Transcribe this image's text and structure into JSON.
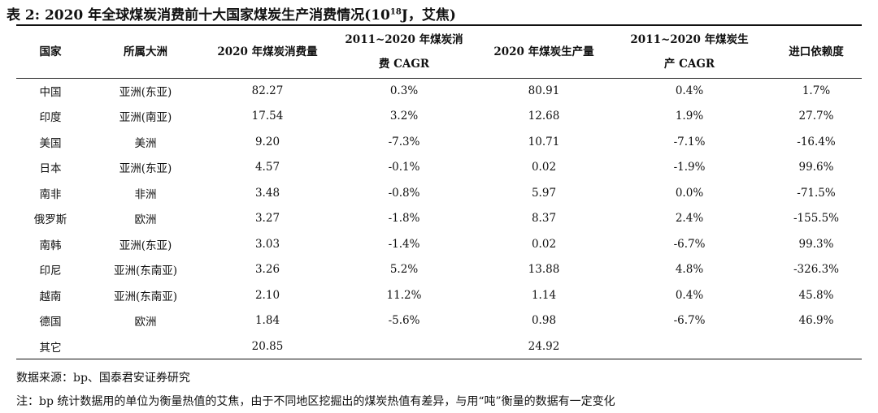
{
  "title_main": "表 2: 2020 年全球煤炭消费前十大国家煤炭生产消费情况(10",
  "title_sup": "18",
  "title_end": "J，艾焦)",
  "headers": {
    "country": "国家",
    "continent": "所属大洲",
    "consumption": "2020 年煤炭消费量",
    "cons_cagr_l1": "2011~2020 年煤炭消",
    "cons_cagr_l2": "费 CAGR",
    "production": "2020 年煤炭生产量",
    "prod_cagr_l1": "2011~2020 年煤炭生",
    "prod_cagr_l2": "产 CAGR",
    "import_dep": "进口依赖度"
  },
  "rows": [
    {
      "country": "中国",
      "continent": "亚洲(东亚)",
      "consumption": "82.27",
      "cons_cagr": "0.3%",
      "production": "80.91",
      "prod_cagr": "0.4%",
      "import_dep": "1.7%"
    },
    {
      "country": "印度",
      "continent": "亚洲(南亚)",
      "consumption": "17.54",
      "cons_cagr": "3.2%",
      "production": "12.68",
      "prod_cagr": "1.9%",
      "import_dep": "27.7%"
    },
    {
      "country": "美国",
      "continent": "美洲",
      "consumption": "9.20",
      "cons_cagr": "-7.3%",
      "production": "10.71",
      "prod_cagr": "-7.1%",
      "import_dep": "-16.4%"
    },
    {
      "country": "日本",
      "continent": "亚洲(东亚)",
      "consumption": "4.57",
      "cons_cagr": "-0.1%",
      "production": "0.02",
      "prod_cagr": "-1.9%",
      "import_dep": "99.6%"
    },
    {
      "country": "南非",
      "continent": "非洲",
      "consumption": "3.48",
      "cons_cagr": "-0.8%",
      "production": "5.97",
      "prod_cagr": "0.0%",
      "import_dep": "-71.5%"
    },
    {
      "country": "俄罗斯",
      "continent": "欧洲",
      "consumption": "3.27",
      "cons_cagr": "-1.8%",
      "production": "8.37",
      "prod_cagr": "2.4%",
      "import_dep": "-155.5%"
    },
    {
      "country": "南韩",
      "continent": "亚洲(东亚)",
      "consumption": "3.03",
      "cons_cagr": "-1.4%",
      "production": "0.02",
      "prod_cagr": "-6.7%",
      "import_dep": "99.3%"
    },
    {
      "country": "印尼",
      "continent": "亚洲(东南亚)",
      "consumption": "3.26",
      "cons_cagr": "5.2%",
      "production": "13.88",
      "prod_cagr": "4.8%",
      "import_dep": "-326.3%"
    },
    {
      "country": "越南",
      "continent": "亚洲(东南亚)",
      "consumption": "2.10",
      "cons_cagr": "11.2%",
      "production": "1.14",
      "prod_cagr": "0.4%",
      "import_dep": "45.8%"
    },
    {
      "country": "德国",
      "continent": "欧洲",
      "consumption": "1.84",
      "cons_cagr": "-5.6%",
      "production": "0.98",
      "prod_cagr": "-6.7%",
      "import_dep": "46.9%"
    },
    {
      "country": "其它",
      "continent": "",
      "consumption": "20.85",
      "cons_cagr": "",
      "production": "24.92",
      "prod_cagr": "",
      "import_dep": ""
    }
  ],
  "source": "数据来源：bp、国泰君安证券研究",
  "remark": "注：bp 统计数据用的单位为衡量热值的艾焦，由于不同地区挖掘出的煤炭热值有差异，与用“吨”衡量的数据有一定变化"
}
